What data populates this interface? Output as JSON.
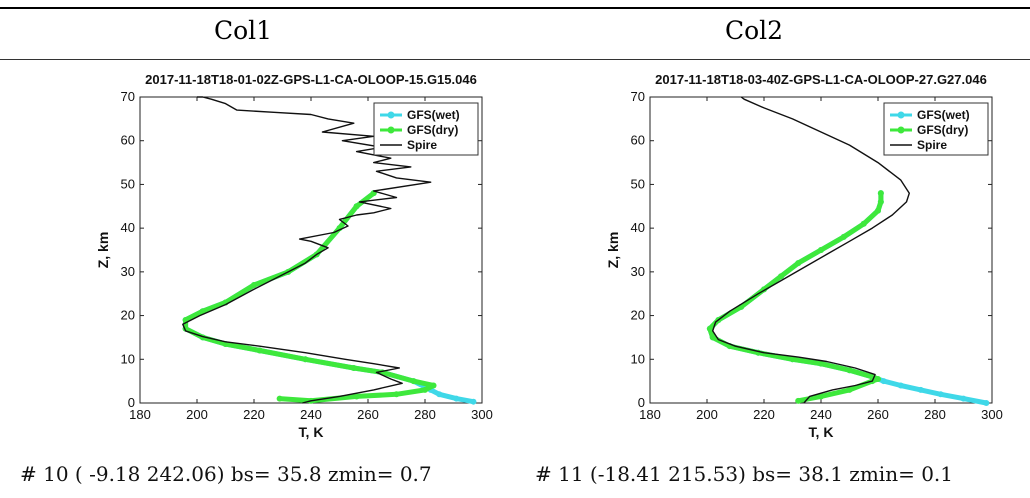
{
  "columns": [
    {
      "header": "Col1",
      "caption": "# 10 ( -9.18 242.06) bs= 35.8 zmin= 0.7"
    },
    {
      "header": "Col2",
      "caption": "# 11 (-18.41 215.53) bs= 38.1 zmin= 0.1"
    }
  ],
  "colors": {
    "wet": "#3fd8e8",
    "dry": "#3ee83c",
    "spire": "#111111"
  },
  "chart_data": [
    {
      "type": "line",
      "title": "2017-11-18T18-01-02Z-GPS-L1-CA-OLOOP-15.G15.046",
      "xlabel": "T, K",
      "ylabel": "Z, km",
      "xlim": [
        180,
        300
      ],
      "ylim": [
        0,
        70
      ],
      "xticks": [
        180,
        200,
        220,
        240,
        260,
        280,
        300
      ],
      "yticks": [
        0,
        10,
        20,
        30,
        40,
        50,
        60,
        70
      ],
      "grid": false,
      "legend": "top-right",
      "series": [
        {
          "name": "GFS(wet)",
          "x": [
            297,
            291,
            285,
            282,
            276,
            265,
            255,
            238,
            222,
            210,
            202,
            196,
            196,
            202,
            210,
            220,
            232,
            242,
            250,
            256,
            262
          ],
          "y": [
            0.3,
            1,
            2,
            3,
            5,
            7,
            8,
            10,
            12,
            13.5,
            15,
            17,
            19,
            21,
            23,
            27,
            30,
            34,
            40,
            45,
            48
          ]
        },
        {
          "name": "GFS(dry)",
          "x": [
            229,
            240,
            256,
            270,
            280,
            283,
            276,
            265,
            255,
            238,
            222,
            210,
            202,
            196,
            196,
            202,
            210,
            220,
            232,
            242,
            250,
            256,
            262
          ],
          "y": [
            1,
            0.5,
            1.5,
            2,
            3,
            4,
            5,
            7,
            8,
            10,
            12,
            13.5,
            15,
            17,
            19,
            21,
            23,
            27,
            30,
            34,
            40,
            45,
            48
          ]
        },
        {
          "name": "Spire",
          "x": [
            237,
            240,
            250,
            262,
            272,
            268,
            263,
            271,
            262,
            252,
            238,
            222,
            210,
            202,
            196,
            195,
            201,
            210,
            220,
            232,
            238,
            242,
            246,
            240,
            236,
            248,
            253,
            250,
            256,
            262,
            268,
            257,
            270,
            262,
            282,
            270,
            263,
            275,
            262,
            268,
            256,
            265,
            251,
            262,
            244,
            255,
            246,
            240,
            227,
            214,
            210,
            205,
            202,
            200
          ],
          "y": [
            0,
            0.5,
            1.5,
            3,
            4.5,
            5.5,
            7,
            8,
            9,
            10,
            11.5,
            13,
            14,
            15.2,
            16.5,
            18,
            20,
            22.5,
            26,
            30,
            32,
            34,
            35.5,
            37,
            37.5,
            39,
            40.5,
            42,
            43,
            43.5,
            44.5,
            46,
            47,
            48.5,
            50.5,
            51.5,
            53,
            54,
            55,
            56,
            57.5,
            58.5,
            60,
            61,
            62,
            64,
            65,
            66,
            66.5,
            67,
            68.5,
            69.5,
            70,
            70
          ]
        }
      ]
    },
    {
      "type": "line",
      "title": "2017-11-18T18-03-40Z-GPS-L1-CA-OLOOP-27.G27.046",
      "xlabel": "T, K",
      "ylabel": "Z, km",
      "xlim": [
        180,
        300
      ],
      "ylim": [
        0,
        70
      ],
      "xticks": [
        180,
        200,
        220,
        240,
        260,
        280,
        300
      ],
      "yticks": [
        0,
        10,
        20,
        30,
        40,
        50,
        60,
        70
      ],
      "grid": false,
      "legend": "top-right",
      "series": [
        {
          "name": "GFS(wet)",
          "x": [
            298,
            290,
            282,
            275,
            268,
            262,
            258,
            250,
            240,
            230,
            218,
            208,
            202,
            201,
            204,
            212,
            220,
            226,
            232,
            240,
            248,
            255,
            260,
            261,
            261
          ],
          "y": [
            0,
            1,
            2,
            3,
            4,
            5,
            6,
            7.5,
            9,
            10,
            11.5,
            13,
            15,
            17,
            19,
            22,
            26,
            29,
            32,
            35,
            38,
            41,
            44,
            46,
            48
          ]
        },
        {
          "name": "GFS(dry)",
          "x": [
            232,
            240,
            250,
            258,
            260,
            258,
            250,
            240,
            230,
            218,
            208,
            202,
            201,
            204,
            212,
            220,
            226,
            232,
            240,
            248,
            255,
            260,
            261,
            261
          ],
          "y": [
            0.5,
            1.5,
            3,
            5,
            5.5,
            6,
            7.5,
            9,
            10,
            11.5,
            13,
            15,
            17,
            19,
            22,
            26,
            29,
            32,
            35,
            38,
            41,
            44,
            46,
            48
          ]
        },
        {
          "name": "Spire",
          "x": [
            234,
            236,
            244,
            252,
            258,
            259,
            252,
            242,
            232,
            220,
            210,
            204,
            202,
            203,
            208,
            218,
            226,
            234,
            242,
            250,
            258,
            265,
            270,
            271,
            268,
            260,
            250,
            240,
            230,
            220,
            213,
            212
          ],
          "y": [
            0,
            1.5,
            3,
            4,
            5,
            6.5,
            8,
            9.5,
            10.5,
            11.5,
            13,
            14.5,
            16.5,
            18.5,
            21,
            25,
            28,
            31,
            34,
            37,
            40,
            43,
            46,
            48,
            51,
            55,
            59,
            62,
            65,
            67.5,
            69.5,
            70
          ]
        }
      ]
    }
  ]
}
